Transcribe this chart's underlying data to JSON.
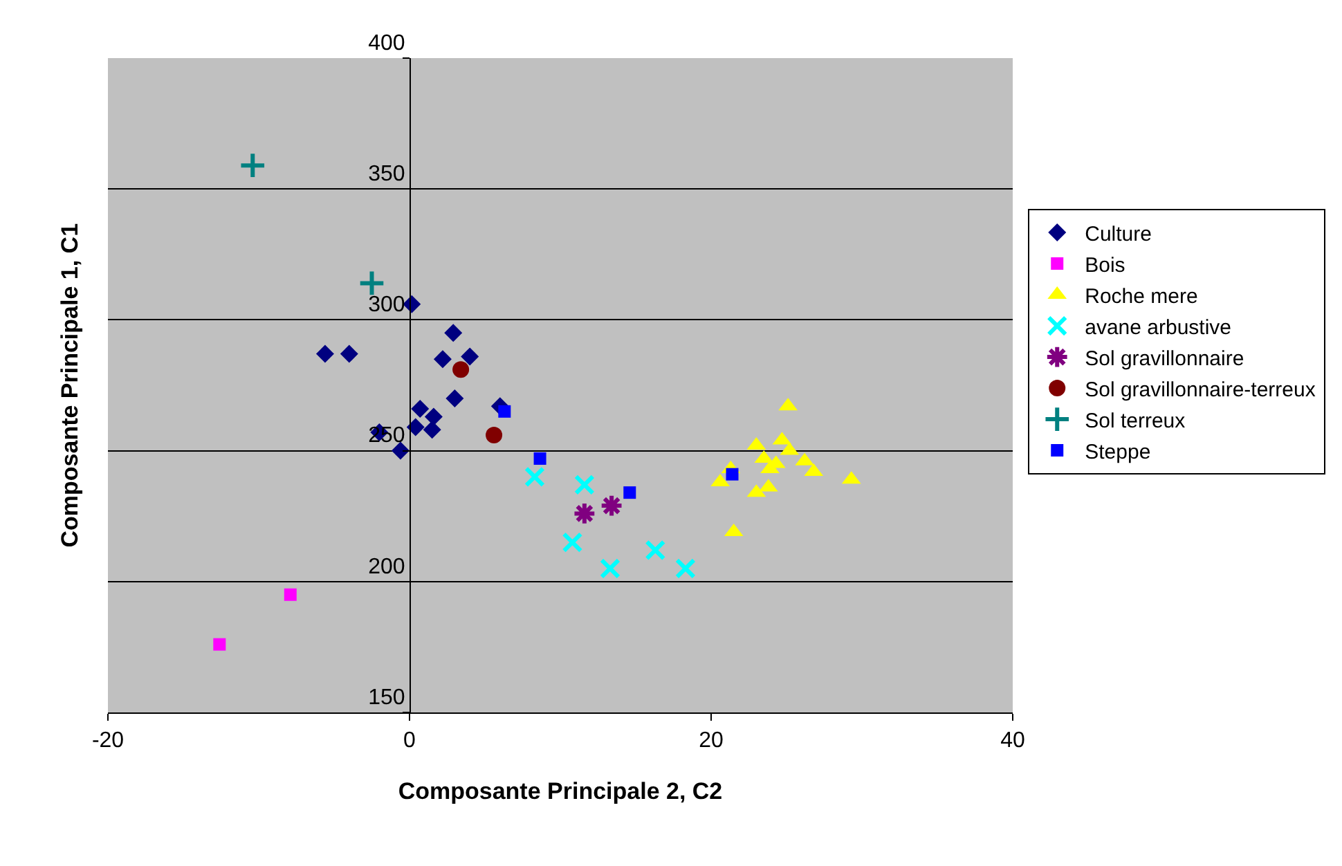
{
  "chart_data": {
    "type": "scatter",
    "xlabel": "Composante Principale 2, C2",
    "ylabel": "Composante Principale 1, C1",
    "xlim": [
      -20,
      40
    ],
    "xticks": [
      -20,
      0,
      20,
      40
    ],
    "ylim": [
      150,
      400
    ],
    "yticks": [
      150,
      200,
      250,
      300,
      350,
      400
    ],
    "grid": "y",
    "legend": "right",
    "series": [
      {
        "name": "Culture",
        "color": "#000080",
        "marker": "diamond",
        "x": [
          0.15,
          2.9,
          -5.6,
          -4.0,
          2.2,
          4.0,
          3.0,
          6.0,
          0.7,
          1.6,
          0.4,
          1.5,
          -2.0,
          -0.6
        ],
        "values": [
          306,
          295,
          287,
          287,
          285,
          286,
          270,
          267,
          266,
          263,
          259,
          258,
          257,
          250
        ]
      },
      {
        "name": "Bois",
        "color": "#ff00ff",
        "marker": "square",
        "x": [
          -7.9,
          -12.6
        ],
        "values": [
          195,
          176
        ]
      },
      {
        "name": "Roche mere",
        "color": "#ffff00",
        "marker": "triangle",
        "x": [
          25.1,
          23.0,
          24.7,
          25.2,
          23.5,
          24.3,
          26.2,
          26.8,
          23.9,
          21.3,
          20.6,
          23.0,
          23.8,
          29.3,
          21.5
        ],
        "values": [
          267,
          252,
          254,
          250,
          247,
          245,
          246,
          242,
          243,
          243,
          238,
          234,
          236,
          239,
          219
        ]
      },
      {
        "name": "avane arbustive",
        "color": "#00ffff",
        "marker": "cross",
        "x": [
          8.3,
          11.6,
          10.8,
          13.3,
          16.3,
          18.3
        ],
        "values": [
          240,
          237,
          215,
          205,
          212,
          205
        ]
      },
      {
        "name": "Sol gravillonnaire",
        "color": "#800080",
        "marker": "cross",
        "x": [
          11.6,
          13.4
        ],
        "values": [
          226,
          229
        ]
      },
      {
        "name": "Sol gravillonnaire-terreux",
        "color": "#800000",
        "marker": "circle",
        "x": [
          3.4,
          5.6
        ],
        "values": [
          281,
          256
        ]
      },
      {
        "name": "Sol terreux",
        "color": "#008080",
        "marker": "cross",
        "x": [
          -10.4,
          -2.5
        ],
        "values": [
          359,
          314
        ]
      },
      {
        "name": "Steppe",
        "color": "#0000ff",
        "marker": "square",
        "x": [
          6.3,
          8.65,
          14.6,
          21.4
        ],
        "values": [
          265,
          247,
          234,
          241
        ]
      }
    ]
  }
}
